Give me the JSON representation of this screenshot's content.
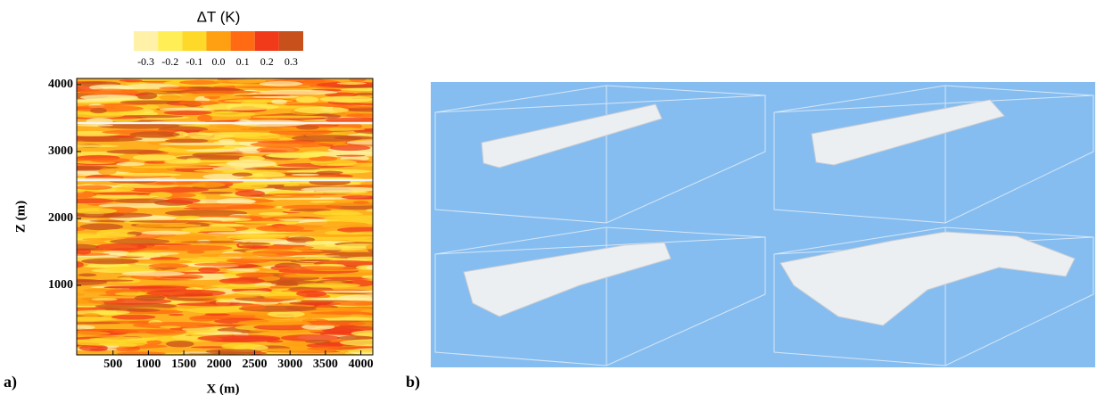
{
  "panel_a": {
    "label": "a)",
    "colorbar": {
      "title": "ΔT (K)",
      "labels": [
        "-0.3",
        "-0.2",
        "-0.1",
        "0.0",
        "0.1",
        "0.2",
        "0.3"
      ],
      "colors": [
        "#fff1a8",
        "#ffee55",
        "#ffd92a",
        "#ff9f12",
        "#ff6a12",
        "#f03a1a",
        "#c8501a"
      ]
    },
    "x_axis": {
      "title": "X (m)",
      "ticks": [
        "500",
        "1000",
        "1500",
        "2000",
        "2500",
        "3000",
        "3500",
        "4000"
      ]
    },
    "y_axis": {
      "title": "Z (m)",
      "ticks": [
        "1000",
        "2000",
        "3000",
        "4000"
      ]
    }
  },
  "panel_b": {
    "label": "b)"
  }
}
